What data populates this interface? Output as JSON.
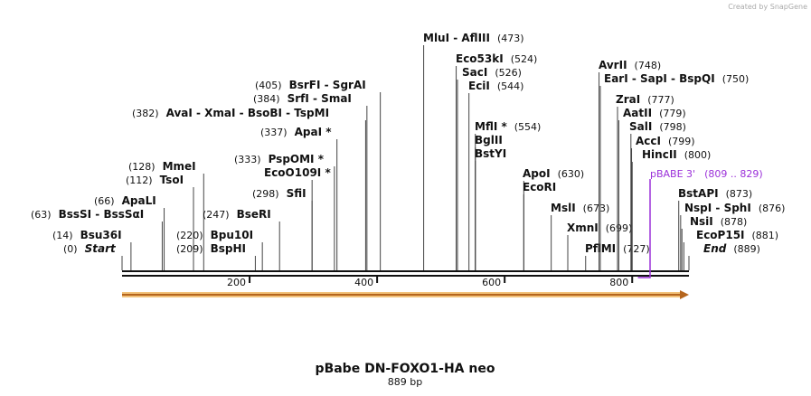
{
  "watermark": "Created by SnapGene",
  "title": "pBabe DN-FOXO1-HA neo",
  "subtitle": "889 bp",
  "axis": {
    "ticks": [
      200,
      400,
      600,
      800
    ]
  },
  "primer": {
    "name": "pBABE 3'",
    "range": "(809 .. 829)",
    "color": "#9b30d9"
  },
  "sites": [
    {
      "name": "Start",
      "pos": "(0)"
    },
    {
      "name": "Bsu36I",
      "pos": "(14)"
    },
    {
      "name": "BssSI - BssSαI",
      "pos": "(63)"
    },
    {
      "name": "ApaLI",
      "pos": "(66)"
    },
    {
      "name": "TsoI",
      "pos": "(112)"
    },
    {
      "name": "MmeI",
      "pos": "(128)"
    },
    {
      "name": "BspHI",
      "pos": "(209)"
    },
    {
      "name": "Bpu10I",
      "pos": "(220)"
    },
    {
      "name": "BseRI",
      "pos": "(247)"
    },
    {
      "name": "SfiI",
      "pos": "(298)"
    },
    {
      "name": "EcoO109I *"
    },
    {
      "name": "PspOMI *",
      "pos": "(333)"
    },
    {
      "name": "ApaI *",
      "pos": "(337)"
    },
    {
      "name": "AvaI - XmaI - BsoBI - TspMI",
      "pos": "(382)"
    },
    {
      "name": "SrfI - SmaI",
      "pos": "(384)"
    },
    {
      "name": "BsrFI - SgrAI",
      "pos": "(405)"
    },
    {
      "name": "MluI - AflIII",
      "pos": "(473)"
    },
    {
      "name": "Eco53kI",
      "pos": "(524)"
    },
    {
      "name": "SacI",
      "pos": "(526)"
    },
    {
      "name": "EciI",
      "pos": "(544)"
    },
    {
      "name": "MflI *",
      "pos": "(554)"
    },
    {
      "name": "BglII"
    },
    {
      "name": "BstYI"
    },
    {
      "name": "ApoI",
      "pos": "(630)"
    },
    {
      "name": "EcoRI"
    },
    {
      "name": "MslI",
      "pos": "(673)"
    },
    {
      "name": "XmnI",
      "pos": "(699)"
    },
    {
      "name": "PflMI",
      "pos": "(727)"
    },
    {
      "name": "AvrII",
      "pos": "(748)"
    },
    {
      "name": "EarI - SapI - BspQI",
      "pos": "(750)"
    },
    {
      "name": "ZraI",
      "pos": "(777)"
    },
    {
      "name": "AatII",
      "pos": "(779)"
    },
    {
      "name": "SalI",
      "pos": "(798)"
    },
    {
      "name": "AccI",
      "pos": "(799)"
    },
    {
      "name": "HincII",
      "pos": "(800)"
    },
    {
      "name": "BstAPI",
      "pos": "(873)"
    },
    {
      "name": "NspI - SphI",
      "pos": "(876)"
    },
    {
      "name": "NsiI",
      "pos": "(878)"
    },
    {
      "name": "EcoP15I",
      "pos": "(881)"
    },
    {
      "name": "End",
      "pos": "(889)"
    }
  ]
}
